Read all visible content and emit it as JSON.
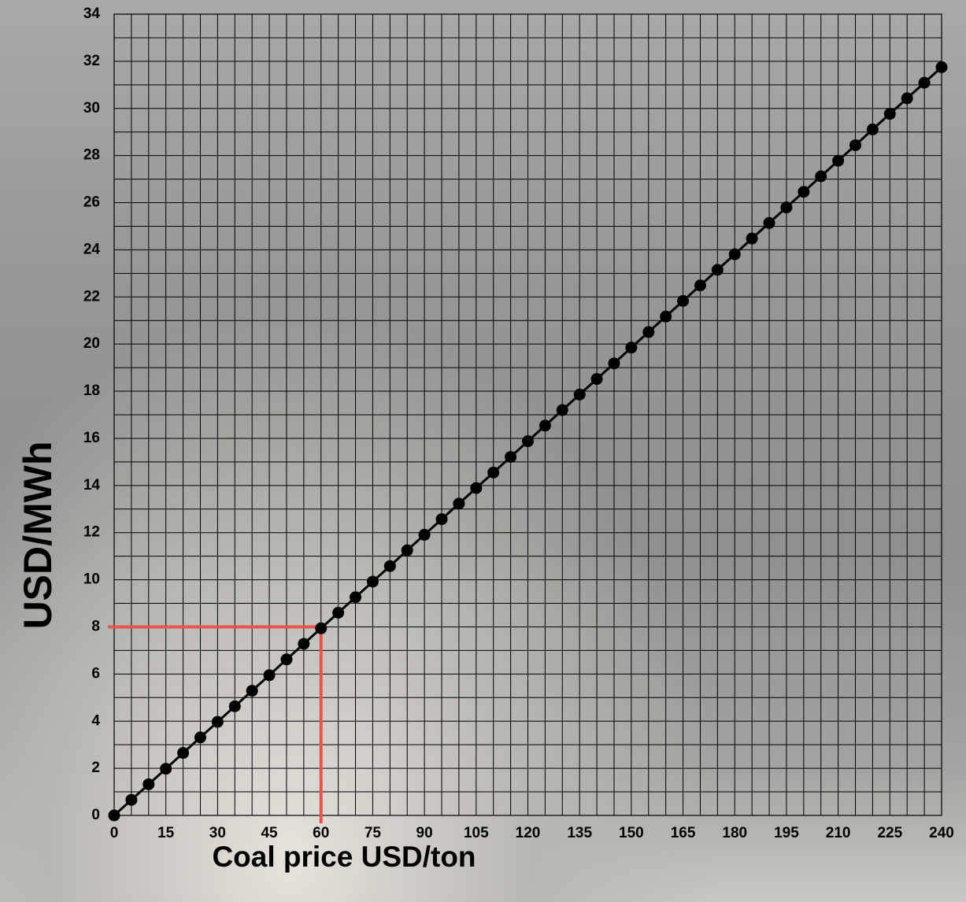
{
  "chart_data": {
    "type": "line",
    "x_label": "Coal price USD/ton",
    "y_label": "USD/MWh",
    "x": [
      0,
      5,
      10,
      15,
      20,
      25,
      30,
      35,
      40,
      45,
      50,
      55,
      60,
      65,
      70,
      75,
      80,
      85,
      90,
      95,
      100,
      105,
      110,
      115,
      120,
      125,
      130,
      135,
      140,
      145,
      150,
      155,
      160,
      165,
      170,
      175,
      180,
      185,
      190,
      195,
      200,
      205,
      210,
      215,
      220,
      225,
      230,
      235,
      240
    ],
    "values": [
      0,
      0.66,
      1.32,
      1.98,
      2.65,
      3.31,
      3.97,
      4.63,
      5.29,
      5.95,
      6.62,
      7.28,
      7.94,
      8.6,
      9.26,
      9.92,
      10.58,
      11.25,
      11.91,
      12.57,
      13.23,
      13.89,
      14.55,
      15.21,
      15.88,
      16.54,
      17.2,
      17.86,
      18.52,
      19.18,
      19.85,
      20.51,
      21.17,
      21.83,
      22.49,
      23.15,
      23.81,
      24.48,
      25.14,
      25.8,
      26.46,
      27.12,
      27.78,
      28.44,
      29.11,
      29.77,
      30.43,
      31.09,
      31.75
    ],
    "color": "#000000",
    "xlim": [
      0,
      240
    ],
    "ylim": [
      0,
      34
    ],
    "xticks": [
      0,
      15,
      30,
      45,
      60,
      75,
      90,
      105,
      120,
      135,
      150,
      165,
      180,
      195,
      210,
      225,
      240
    ],
    "yticks": [
      0,
      2,
      4,
      6,
      8,
      10,
      12,
      14,
      16,
      18,
      20,
      22,
      24,
      26,
      28,
      30,
      32,
      34
    ],
    "minor_xticks": [
      5,
      10,
      20,
      25,
      35,
      40,
      50,
      55,
      65,
      70,
      80,
      85,
      95,
      100,
      110,
      115,
      125,
      130,
      140,
      145,
      155,
      160,
      170,
      175,
      185,
      190,
      200,
      205,
      215,
      220,
      230,
      235
    ],
    "minor_yticks": [
      1,
      3,
      5,
      7,
      9,
      11,
      13,
      15,
      17,
      19,
      21,
      23,
      25,
      27,
      29,
      31,
      33
    ],
    "grid": true,
    "reference": {
      "x": 60,
      "y": 8,
      "color": "#e8554c"
    }
  }
}
